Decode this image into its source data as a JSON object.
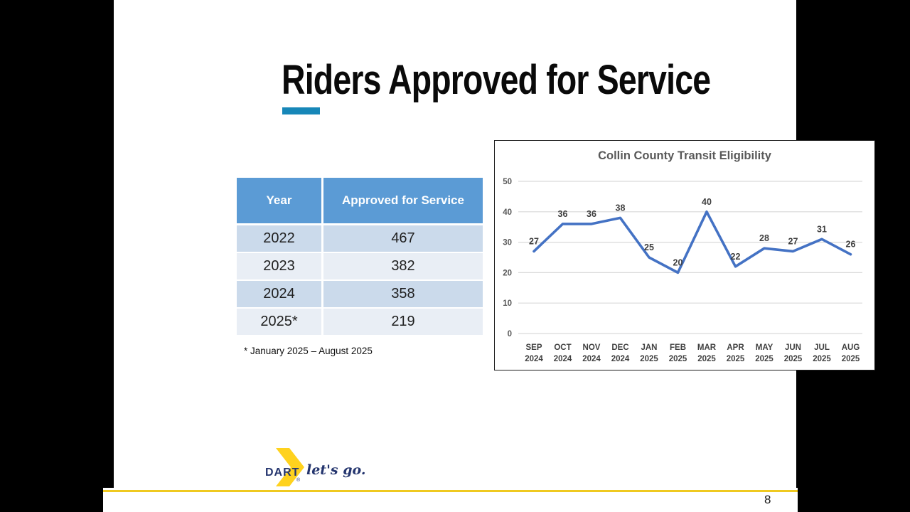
{
  "slide": {
    "title": "Riders Approved for Service",
    "page_number": "8"
  },
  "table": {
    "headers": [
      "Year",
      "Approved for Service"
    ],
    "rows": [
      {
        "year": "2022",
        "approved": "467"
      },
      {
        "year": "2023",
        "approved": "382"
      },
      {
        "year": "2024",
        "approved": "358"
      },
      {
        "year": "2025*",
        "approved": "219"
      }
    ],
    "footnote": "* January 2025 – August 2025"
  },
  "chart_data": {
    "type": "line",
    "title": "Collin County Transit Eligibility",
    "categories": [
      [
        "SEP",
        "2024"
      ],
      [
        "OCT",
        "2024"
      ],
      [
        "NOV",
        "2024"
      ],
      [
        "DEC",
        "2024"
      ],
      [
        "JAN",
        "2025"
      ],
      [
        "FEB",
        "2025"
      ],
      [
        "MAR",
        "2025"
      ],
      [
        "APR",
        "2025"
      ],
      [
        "MAY",
        "2025"
      ],
      [
        "JUN",
        "2025"
      ],
      [
        "JUL",
        "2025"
      ],
      [
        "AUG",
        "2025"
      ]
    ],
    "values": [
      27,
      36,
      36,
      38,
      25,
      20,
      40,
      22,
      28,
      27,
      31,
      26
    ],
    "ylim": [
      0,
      50
    ],
    "yticks": [
      0,
      10,
      20,
      30,
      40,
      50
    ],
    "grid": true,
    "legend": false,
    "data_labels": true
  },
  "logo": {
    "brand": "DART",
    "registered": "®",
    "tagline": "let's go."
  },
  "colors": {
    "accent_bar": "#1787B8",
    "table_header_bg": "#5B9BD5",
    "row_band_dark": "#CBDAEB",
    "row_band_light": "#E9EEF5",
    "chart_line": "#4472C4",
    "gridline": "#D9D9D9",
    "chart_title_text": "#595959",
    "axis_label_text": "#404040",
    "brand_yellow": "#FFD21E",
    "brand_navy": "#24356E",
    "footer_line": "#EFC920"
  }
}
